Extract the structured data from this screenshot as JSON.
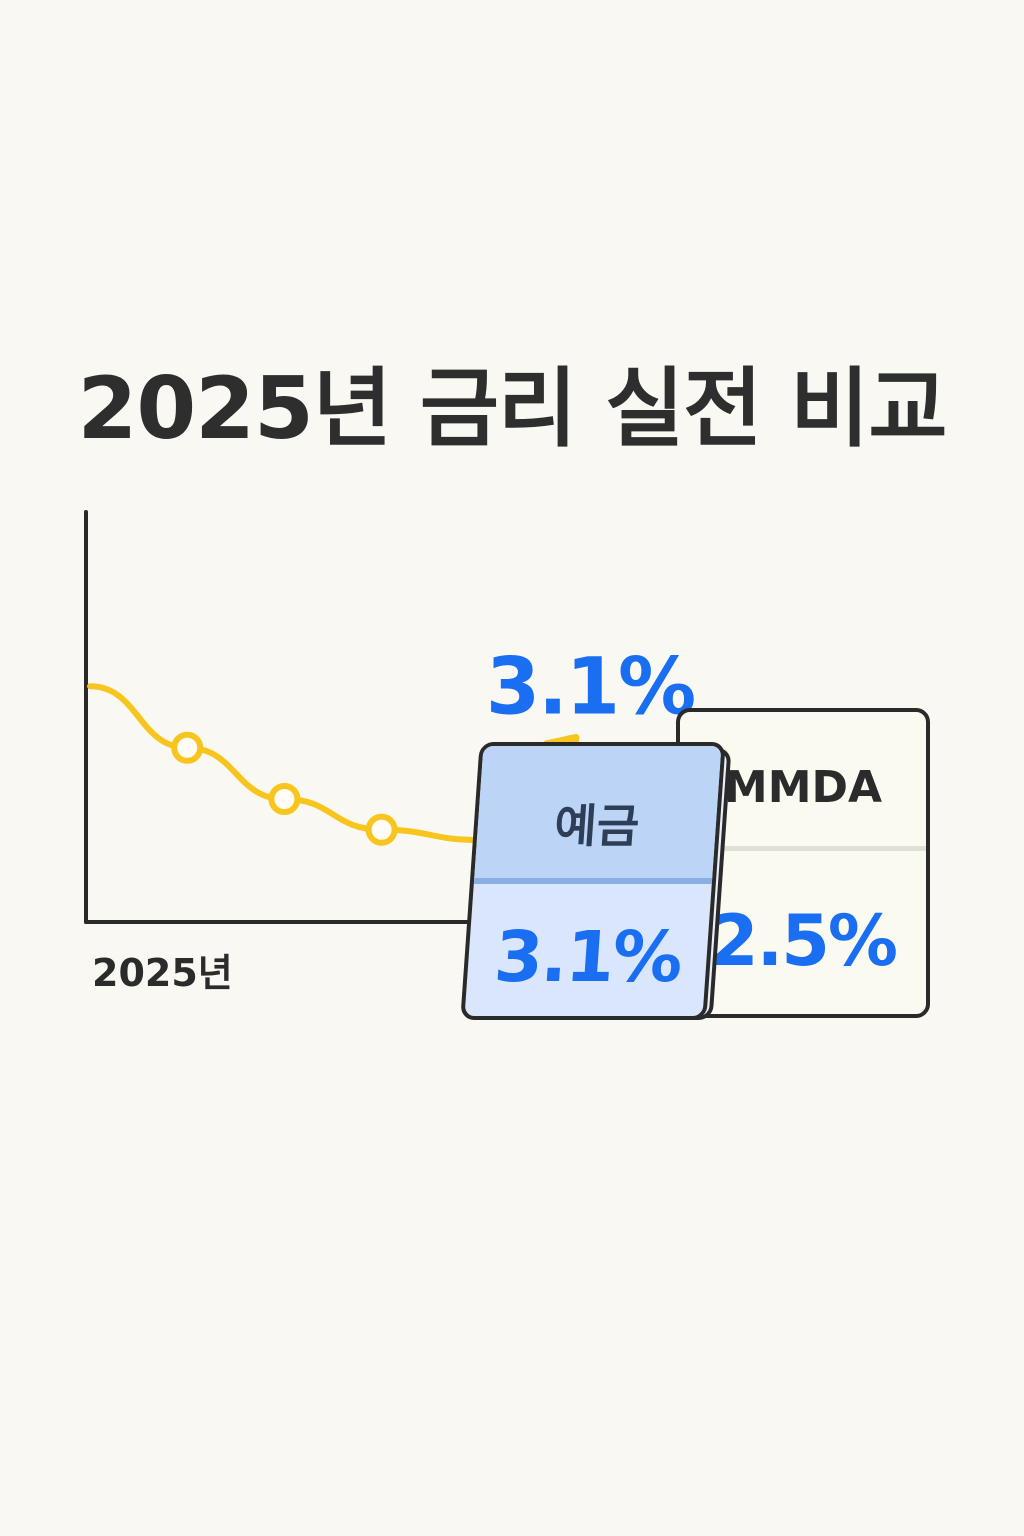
{
  "title": "2025년 금리 실전 비교",
  "chart_data": {
    "type": "line",
    "x_tick_label": "2025년",
    "points": [
      {
        "y": 3.35
      },
      {
        "y": 3.05
      },
      {
        "y": 2.8
      },
      {
        "y": 2.65
      },
      {
        "y": 2.6
      },
      {
        "y": 3.1
      }
    ],
    "markers": [
      1,
      2,
      3
    ],
    "end_label": "3.1%",
    "ylim": [
      2.2,
      4.2
    ],
    "grid": false,
    "line_color": "#f7c51e",
    "value_color": "#1a6ef2"
  },
  "cards": {
    "deposit": {
      "label": "예금",
      "value": "3.1%"
    },
    "mmda": {
      "label": "MMDA",
      "value": "2.5%"
    }
  }
}
